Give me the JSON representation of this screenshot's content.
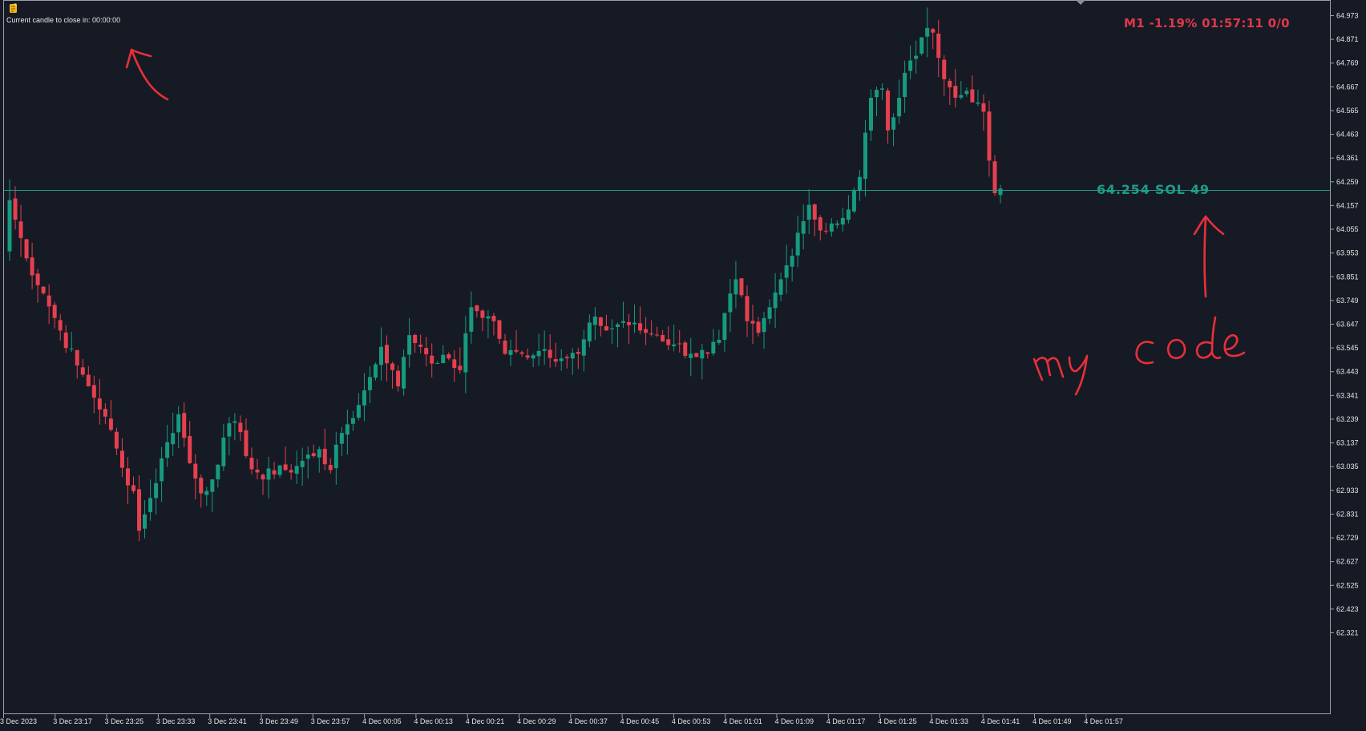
{
  "header": {
    "candle_close_label": "Current candle to close in: 00:00:00",
    "status_text": "M1 -1.19% 01:57:11 0/0"
  },
  "indicator_line": {
    "label": "64.254  SOL  49",
    "price": 64.225
  },
  "annotation": {
    "handwritten_text": "my code",
    "color": "#e8303a"
  },
  "colors": {
    "background": "#161a24",
    "bull": "#169a80",
    "bear": "#e6404f",
    "axis_text": "#e6e6e6",
    "line": "#1e9c88"
  },
  "chart_data": {
    "type": "candlestick",
    "timeframe": "M1",
    "y_axis_ticks": [
      "64.973",
      "64.871",
      "64.769",
      "64.667",
      "64.565",
      "64.463",
      "64.361",
      "64.259",
      "64.157",
      "64.055",
      "63.953",
      "63.851",
      "63.749",
      "63.647",
      "63.545",
      "63.443",
      "63.341",
      "63.239",
      "63.137",
      "63.035",
      "62.933",
      "62.831",
      "62.729",
      "62.627",
      "62.525",
      "62.423",
      "62.321"
    ],
    "x_axis_ticks": [
      "3 Dec 2023",
      "3 Dec 23:17",
      "3 Dec 23:25",
      "3 Dec 23:33",
      "3 Dec 23:41",
      "3 Dec 23:49",
      "3 Dec 23:57",
      "4 Dec 00:05",
      "4 Dec 00:13",
      "4 Dec 00:21",
      "4 Dec 00:29",
      "4 Dec 00:37",
      "4 Dec 00:45",
      "4 Dec 00:53",
      "4 Dec 01:01",
      "4 Dec 01:09",
      "4 Dec 01:17",
      "4 Dec 01:25",
      "4 Dec 01:33",
      "4 Dec 01:41",
      "4 Dec 01:49",
      "4 Dec 01:57"
    ],
    "close_anchors": [
      [
        0,
        64.18
      ],
      [
        3,
        63.93
      ],
      [
        6,
        63.78
      ],
      [
        9,
        63.62
      ],
      [
        12,
        63.47
      ],
      [
        14,
        63.38
      ],
      [
        17,
        63.25
      ],
      [
        20,
        63.03
      ],
      [
        22,
        62.93
      ],
      [
        23,
        62.76
      ],
      [
        25,
        62.9
      ],
      [
        28,
        63.14
      ],
      [
        30,
        63.26
      ],
      [
        32,
        63.05
      ],
      [
        34,
        62.92
      ],
      [
        36,
        62.98
      ],
      [
        38,
        63.16
      ],
      [
        40,
        63.23
      ],
      [
        42,
        63.08
      ],
      [
        45,
        62.98
      ],
      [
        48,
        63.04
      ],
      [
        50,
        63.01
      ],
      [
        52,
        63.06
      ],
      [
        55,
        63.11
      ],
      [
        57,
        63.02
      ],
      [
        59,
        63.18
      ],
      [
        62,
        63.3
      ],
      [
        64,
        63.42
      ],
      [
        66,
        63.55
      ],
      [
        68,
        63.45
      ],
      [
        69,
        63.38
      ],
      [
        71,
        63.6
      ],
      [
        73,
        63.55
      ],
      [
        76,
        63.48
      ],
      [
        78,
        63.5
      ],
      [
        80,
        63.45
      ],
      [
        82,
        63.72
      ],
      [
        86,
        63.66
      ],
      [
        88,
        63.52
      ],
      [
        91,
        63.52
      ],
      [
        95,
        63.54
      ],
      [
        98,
        63.5
      ],
      [
        101,
        63.52
      ],
      [
        104,
        63.68
      ],
      [
        106,
        63.62
      ],
      [
        109,
        63.66
      ],
      [
        112,
        63.62
      ],
      [
        115,
        63.6
      ],
      [
        118,
        63.56
      ],
      [
        121,
        63.52
      ],
      [
        124,
        63.52
      ],
      [
        126,
        63.58
      ],
      [
        129,
        63.84
      ],
      [
        131,
        63.66
      ],
      [
        133,
        63.61
      ],
      [
        135,
        63.72
      ],
      [
        137,
        63.84
      ],
      [
        138,
        63.9
      ],
      [
        140,
        64.04
      ],
      [
        142,
        64.16
      ],
      [
        144,
        64.05
      ],
      [
        146,
        64.08
      ],
      [
        147,
        64.08
      ],
      [
        149,
        64.14
      ],
      [
        151,
        64.28
      ],
      [
        152,
        64.47
      ],
      [
        153,
        64.62
      ],
      [
        155,
        64.66
      ],
      [
        156,
        64.48
      ],
      [
        158,
        64.62
      ],
      [
        160,
        64.78
      ],
      [
        162,
        64.88
      ],
      [
        163,
        64.92
      ],
      [
        164,
        64.9
      ],
      [
        166,
        64.7
      ],
      [
        168,
        64.62
      ],
      [
        170,
        64.65
      ],
      [
        172,
        64.6
      ],
      [
        173,
        64.56
      ],
      [
        174,
        64.35
      ],
      [
        175,
        64.21
      ],
      [
        176,
        64.23
      ]
    ],
    "y_range": [
      62.28,
      65.02
    ]
  }
}
